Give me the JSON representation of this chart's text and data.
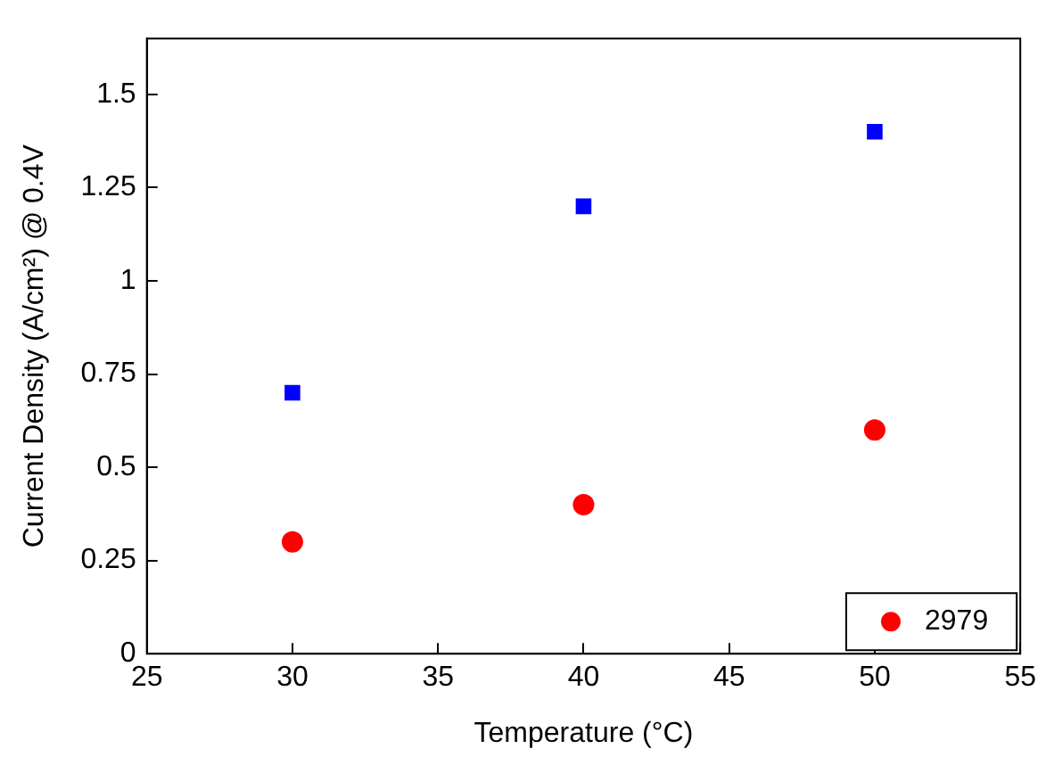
{
  "chart_data": {
    "type": "scatter",
    "xlabel": "Temperature (°C)",
    "ylabel": "Current Density (A/cm²) @ 0.4V",
    "x": [
      30,
      40,
      50
    ],
    "series": [
      {
        "name": "2979",
        "color": "#ff0000",
        "marker": "circle",
        "values": [
          0.3,
          0.4,
          0.6
        ]
      },
      {
        "color": "#0000ff",
        "marker": "square",
        "values": [
          0.7,
          1.2,
          1.4
        ]
      }
    ],
    "xlim": [
      25,
      55
    ],
    "xticks": [
      25,
      30,
      35,
      40,
      45,
      50,
      55
    ],
    "ylim": [
      0,
      1.65
    ],
    "yticks": [
      0,
      0.25,
      0.5,
      0.75,
      1,
      1.25,
      1.5
    ],
    "grid": false,
    "legend": "bottom right"
  }
}
